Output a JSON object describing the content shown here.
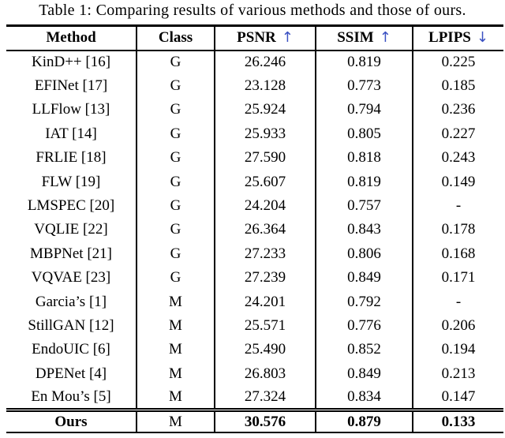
{
  "caption": "Table 1: Comparing results of various methods and those of ours.",
  "colors": {
    "text": "#000000",
    "border": "#000000",
    "arrow_blue": "#3a50c2",
    "background": "#ffffff"
  },
  "table": {
    "columns": [
      {
        "key": "method",
        "label": "Method",
        "arrow": ""
      },
      {
        "key": "class",
        "label": "Class",
        "arrow": ""
      },
      {
        "key": "psnr",
        "label": "PSNR",
        "arrow": "↑"
      },
      {
        "key": "ssim",
        "label": "SSIM",
        "arrow": "↑"
      },
      {
        "key": "lpips",
        "label": "LPIPS",
        "arrow": "↓"
      }
    ],
    "rows": [
      {
        "method": "KinD++ [16]",
        "class": "G",
        "psnr": "26.246",
        "ssim": "0.819",
        "lpips": "0.225"
      },
      {
        "method": "EFINet [17]",
        "class": "G",
        "psnr": "23.128",
        "ssim": "0.773",
        "lpips": "0.185"
      },
      {
        "method": "LLFlow [13]",
        "class": "G",
        "psnr": "25.924",
        "ssim": "0.794",
        "lpips": "0.236"
      },
      {
        "method": "IAT [14]",
        "class": "G",
        "psnr": "25.933",
        "ssim": "0.805",
        "lpips": "0.227"
      },
      {
        "method": "FRLIE [18]",
        "class": "G",
        "psnr": "27.590",
        "ssim": "0.818",
        "lpips": "0.243"
      },
      {
        "method": "FLW [19]",
        "class": "G",
        "psnr": "25.607",
        "ssim": "0.819",
        "lpips": "0.149"
      },
      {
        "method": "LMSPEC [20]",
        "class": "G",
        "psnr": "24.204",
        "ssim": "0.757",
        "lpips": "-"
      },
      {
        "method": "VQLIE [22]",
        "class": "G",
        "psnr": "26.364",
        "ssim": "0.843",
        "lpips": "0.178"
      },
      {
        "method": "MBPNet [21]",
        "class": "G",
        "psnr": "27.233",
        "ssim": "0.806",
        "lpips": "0.168"
      },
      {
        "method": "VQVAE [23]",
        "class": "G",
        "psnr": "27.239",
        "ssim": "0.849",
        "lpips": "0.171"
      },
      {
        "method": "Garcia’s [1]",
        "class": "M",
        "psnr": "24.201",
        "ssim": "0.792",
        "lpips": "-"
      },
      {
        "method": "StillGAN [12]",
        "class": "M",
        "psnr": "25.571",
        "ssim": "0.776",
        "lpips": "0.206"
      },
      {
        "method": "EndoUIC [6]",
        "class": "M",
        "psnr": "25.490",
        "ssim": "0.852",
        "lpips": "0.194"
      },
      {
        "method": "DPENet [4]",
        "class": "M",
        "psnr": "26.803",
        "ssim": "0.849",
        "lpips": "0.213"
      },
      {
        "method": "En Mou’s [5]",
        "class": "M",
        "psnr": "27.324",
        "ssim": "0.834",
        "lpips": "0.147"
      },
      {
        "method": "Ours",
        "class": "M",
        "psnr": "30.576",
        "ssim": "0.879",
        "lpips": "0.133",
        "bold": true,
        "separator_above": "double"
      }
    ]
  }
}
